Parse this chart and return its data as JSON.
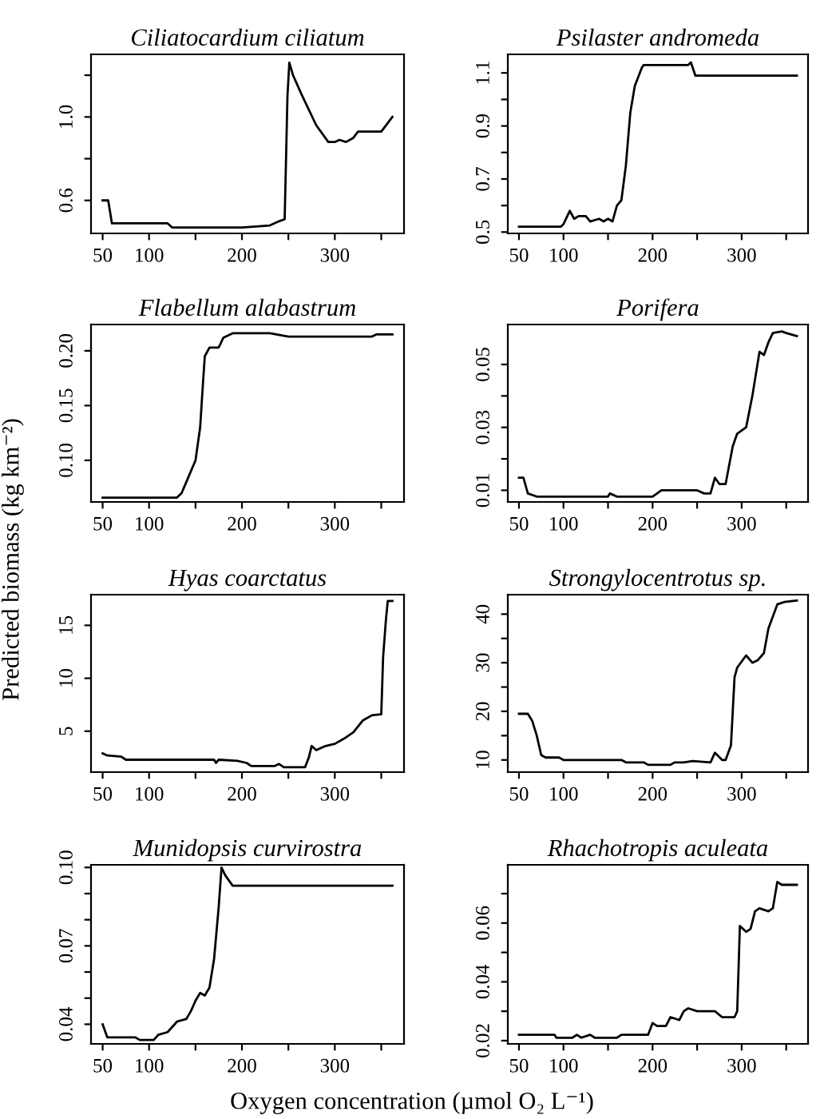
{
  "chart_data": [
    {
      "type": "line",
      "title": "Ciliatocardium ciliatum",
      "xlim": [
        37.5,
        374.5
      ],
      "xticks": [
        50,
        100,
        {
          "value": 150,
          "label": null
        },
        200,
        {
          "value": 250,
          "label": null
        },
        300,
        {
          "value": 350,
          "label": null
        }
      ],
      "ylim": [
        0.442,
        1.3
      ],
      "yticks": [
        0.6,
        {
          "value": 0.8,
          "label": null
        },
        {
          "value": 1.0,
          "label": "1.0"
        },
        {
          "value": 1.2,
          "label": null
        }
      ],
      "grid": false,
      "series": [
        {
          "color": "#000000",
          "x": [
            50,
            56,
            60,
            120,
            125,
            200,
            230,
            240,
            246,
            249,
            251,
            255,
            265,
            280,
            293,
            300,
            305,
            312,
            320,
            325,
            350,
            362
          ],
          "values": [
            0.6,
            0.6,
            0.49,
            0.49,
            0.47,
            0.47,
            0.48,
            0.5,
            0.51,
            1.1,
            1.26,
            1.2,
            1.1,
            0.96,
            0.88,
            0.88,
            0.89,
            0.88,
            0.9,
            0.93,
            0.93,
            1.0
          ]
        }
      ]
    },
    {
      "type": "line",
      "title": "Psilaster andromeda",
      "xlim": [
        37.5,
        374.5
      ],
      "xticks": [
        50,
        100,
        {
          "value": 150,
          "label": null
        },
        200,
        {
          "value": 250,
          "label": null
        },
        300,
        {
          "value": 350,
          "label": null
        }
      ],
      "ylim": [
        0.495,
        1.17
      ],
      "yticks": [
        0.5,
        {
          "value": 0.6,
          "label": null
        },
        0.7,
        {
          "value": 0.8,
          "label": null
        },
        0.9,
        {
          "value": 1.0,
          "label": null
        },
        1.1
      ],
      "grid": false,
      "series": [
        {
          "color": "#000000",
          "x": [
            50,
            97,
            100,
            107,
            112,
            117,
            125,
            130,
            140,
            145,
            150,
            155,
            160,
            165,
            170,
            175,
            180,
            188,
            190,
            240,
            243,
            248,
            362
          ],
          "values": [
            0.52,
            0.52,
            0.53,
            0.58,
            0.55,
            0.56,
            0.56,
            0.54,
            0.55,
            0.54,
            0.55,
            0.54,
            0.6,
            0.62,
            0.75,
            0.95,
            1.05,
            1.12,
            1.13,
            1.13,
            1.14,
            1.09,
            1.09
          ]
        }
      ]
    },
    {
      "type": "line",
      "title": "Flabellum alabastrum",
      "ylabel": "Predicted biomass (kg km⁻²)",
      "xlim": [
        37.5,
        374.5
      ],
      "xticks": [
        50,
        100,
        {
          "value": 150,
          "label": null
        },
        200,
        {
          "value": 250,
          "label": null
        },
        300,
        {
          "value": 350,
          "label": null
        }
      ],
      "ylim": [
        0.062,
        0.224
      ],
      "yticks": [
        {
          "value": 0.1,
          "label": "0.10"
        },
        0.15,
        {
          "value": 0.2,
          "label": "0.20"
        }
      ],
      "grid": false,
      "series": [
        {
          "color": "#000000",
          "x": [
            50,
            130,
            135,
            140,
            145,
            150,
            155,
            158,
            160,
            165,
            175,
            180,
            190,
            230,
            250,
            340,
            345,
            362
          ],
          "values": [
            0.066,
            0.066,
            0.07,
            0.08,
            0.09,
            0.1,
            0.13,
            0.17,
            0.195,
            0.203,
            0.203,
            0.212,
            0.216,
            0.216,
            0.213,
            0.213,
            0.215,
            0.215
          ]
        }
      ]
    },
    {
      "type": "line",
      "title": "Porifera",
      "xlim": [
        37.5,
        374.5
      ],
      "xticks": [
        50,
        100,
        {
          "value": 150,
          "label": null
        },
        200,
        {
          "value": 250,
          "label": null
        },
        300,
        {
          "value": 350,
          "label": null
        }
      ],
      "ylim": [
        0.0063,
        0.0627
      ],
      "yticks": [
        0.01,
        {
          "value": 0.02,
          "label": null
        },
        0.03,
        {
          "value": 0.04,
          "label": null
        },
        0.05
      ],
      "grid": false,
      "series": [
        {
          "color": "#000000",
          "x": [
            50,
            55,
            60,
            70,
            150,
            152,
            160,
            200,
            210,
            230,
            250,
            258,
            265,
            270,
            275,
            282,
            290,
            295,
            305,
            312,
            320,
            325,
            330,
            335,
            345,
            350,
            362
          ],
          "values": [
            0.014,
            0.014,
            0.009,
            0.008,
            0.008,
            0.009,
            0.008,
            0.008,
            0.01,
            0.01,
            0.01,
            0.009,
            0.009,
            0.014,
            0.012,
            0.012,
            0.024,
            0.028,
            0.03,
            0.04,
            0.054,
            0.053,
            0.057,
            0.06,
            0.0605,
            0.06,
            0.059
          ]
        }
      ]
    },
    {
      "type": "line",
      "title": "Hyas coarctatus",
      "xlim": [
        37.5,
        374.5
      ],
      "xticks": [
        50,
        100,
        {
          "value": 150,
          "label": null
        },
        200,
        {
          "value": 250,
          "label": null
        },
        300,
        {
          "value": 350,
          "label": null
        }
      ],
      "ylim": [
        1.13,
        17.9
      ],
      "yticks": [
        5,
        10,
        15
      ],
      "grid": false,
      "series": [
        {
          "color": "#000000",
          "x": [
            50,
            55,
            70,
            75,
            170,
            172,
            175,
            195,
            205,
            210,
            235,
            240,
            245,
            268,
            272,
            275,
            280,
            290,
            300,
            310,
            320,
            330,
            340,
            350,
            352,
            355,
            357,
            362
          ],
          "values": [
            2.9,
            2.7,
            2.6,
            2.3,
            2.3,
            2.0,
            2.3,
            2.2,
            2.0,
            1.7,
            1.7,
            1.9,
            1.6,
            1.6,
            2.5,
            3.6,
            3.2,
            3.6,
            3.8,
            4.3,
            4.9,
            6.0,
            6.5,
            6.6,
            12,
            15.5,
            17.3,
            17.3
          ]
        }
      ]
    },
    {
      "type": "line",
      "title": "Strongylocentrotus sp.",
      "xlim": [
        37.5,
        374.5
      ],
      "xticks": [
        50,
        100,
        {
          "value": 150,
          "label": null
        },
        200,
        {
          "value": 250,
          "label": null
        },
        300,
        {
          "value": 350,
          "label": null
        }
      ],
      "ylim": [
        7.5,
        44
      ],
      "yticks": [
        10,
        {
          "value": 15,
          "label": null
        },
        20,
        {
          "value": 25,
          "label": null
        },
        30,
        {
          "value": 35,
          "label": null
        },
        40
      ],
      "grid": false,
      "series": [
        {
          "color": "#000000",
          "x": [
            50,
            60,
            65,
            70,
            75,
            80,
            95,
            100,
            165,
            170,
            190,
            195,
            220,
            225,
            235,
            245,
            265,
            270,
            278,
            282,
            288,
            292,
            295,
            305,
            312,
            318,
            325,
            330,
            340,
            348,
            362
          ],
          "values": [
            19.5,
            19.5,
            18,
            15,
            11,
            10.5,
            10.5,
            10,
            10,
            9.5,
            9.5,
            9,
            9,
            9.5,
            9.5,
            9.8,
            9.5,
            11.5,
            10,
            10,
            13,
            27,
            29,
            31.5,
            30,
            30.5,
            32,
            37,
            42,
            42.5,
            42.8
          ]
        }
      ]
    },
    {
      "type": "line",
      "title": "Munidopsis curvirostra",
      "xlabel": "Oxygen concentration (µmol O₂ L⁻¹)",
      "xlim": [
        37.5,
        374.5
      ],
      "xticks": [
        50,
        100,
        {
          "value": 150,
          "label": null
        },
        200,
        {
          "value": 250,
          "label": null
        },
        300,
        {
          "value": 350,
          "label": null
        }
      ],
      "ylim": [
        0.0325,
        0.101
      ],
      "yticks": [
        0.04,
        {
          "value": 0.05,
          "label": null
        },
        {
          "value": 0.06,
          "label": null
        },
        0.07,
        {
          "value": 0.08,
          "label": null
        },
        {
          "value": 0.09,
          "label": null
        },
        {
          "value": 0.1,
          "label": "0.10"
        }
      ],
      "grid": false,
      "series": [
        {
          "color": "#000000",
          "x": [
            50,
            55,
            85,
            90,
            105,
            110,
            120,
            130,
            140,
            145,
            150,
            155,
            160,
            165,
            170,
            175,
            178,
            182,
            190,
            362
          ],
          "values": [
            0.04,
            0.035,
            0.035,
            0.034,
            0.034,
            0.036,
            0.037,
            0.041,
            0.042,
            0.045,
            0.049,
            0.052,
            0.051,
            0.054,
            0.065,
            0.085,
            0.1,
            0.097,
            0.093,
            0.093
          ]
        }
      ]
    },
    {
      "type": "line",
      "title": "Rhachotropis aculeata",
      "xlim": [
        37.5,
        374.5
      ],
      "xticks": [
        50,
        100,
        {
          "value": 150,
          "label": null
        },
        200,
        {
          "value": 250,
          "label": null
        },
        300,
        {
          "value": 350,
          "label": null
        }
      ],
      "ylim": [
        0.0189,
        0.0798
      ],
      "yticks": [
        0.02,
        {
          "value": 0.03,
          "label": null
        },
        0.04,
        {
          "value": 0.05,
          "label": null
        },
        0.06,
        {
          "value": 0.07,
          "label": null
        }
      ],
      "grid": false,
      "series": [
        {
          "color": "#000000",
          "x": [
            50,
            90,
            92,
            110,
            115,
            120,
            130,
            135,
            160,
            165,
            195,
            200,
            205,
            215,
            220,
            230,
            235,
            240,
            250,
            270,
            278,
            292,
            295,
            298,
            305,
            310,
            315,
            320,
            330,
            335,
            340,
            345,
            362
          ],
          "values": [
            0.022,
            0.022,
            0.021,
            0.021,
            0.022,
            0.021,
            0.022,
            0.021,
            0.021,
            0.022,
            0.022,
            0.026,
            0.025,
            0.025,
            0.028,
            0.027,
            0.03,
            0.031,
            0.03,
            0.03,
            0.028,
            0.028,
            0.03,
            0.059,
            0.057,
            0.058,
            0.064,
            0.065,
            0.064,
            0.065,
            0.074,
            0.073,
            0.073
          ]
        }
      ]
    }
  ]
}
